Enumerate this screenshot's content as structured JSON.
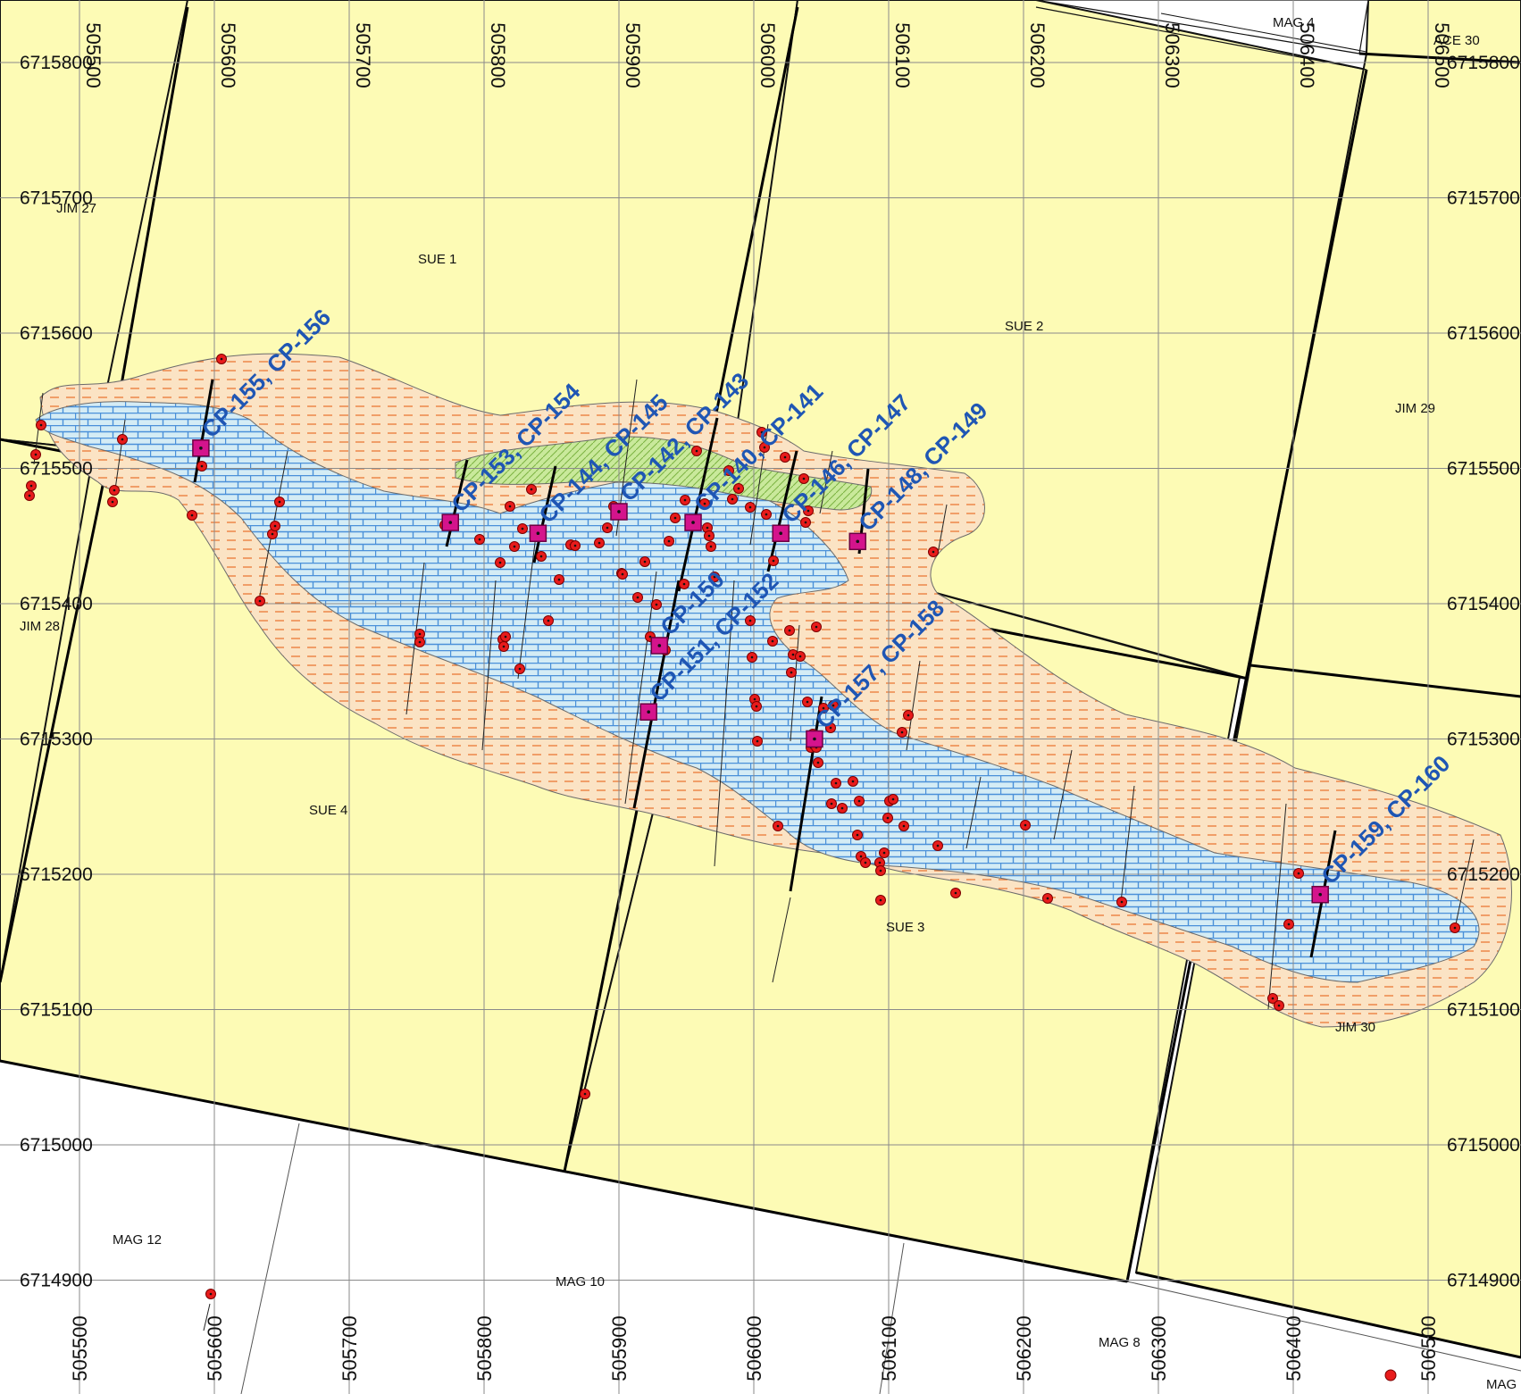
{
  "map": {
    "easting_ticks": [
      "505500",
      "505600",
      "505700",
      "505800",
      "505900",
      "506000",
      "506100",
      "506200",
      "506300",
      "506400",
      "506500"
    ],
    "northing_ticks": [
      "6715800",
      "6715700",
      "6715600",
      "6715500",
      "6715400",
      "6715300",
      "6715200",
      "6715100",
      "6715000",
      "6714900"
    ],
    "claims": [
      "JIM 27",
      "SUE 1",
      "SUE 2",
      "JIM 29",
      "JIM 28",
      "SUE 4",
      "SUE 3",
      "JIM 30",
      "MAG 12",
      "MAG 10",
      "MAG 8",
      "MAG 4",
      "ACE 30",
      "MAG"
    ],
    "drillholes": [
      {
        "label": "CP-155, CP-156",
        "e": 505590,
        "n": 6715515
      },
      {
        "label": "CP-153, CP-154",
        "e": 505775,
        "n": 6715460
      },
      {
        "label": "CP-144, CP-145",
        "e": 505840,
        "n": 6715452
      },
      {
        "label": "CP-142, CP-143",
        "e": 505900,
        "n": 6715468
      },
      {
        "label": "CP-140, CP-141",
        "e": 505955,
        "n": 6715460
      },
      {
        "label": "CP-146, CP-147",
        "e": 506020,
        "n": 6715452
      },
      {
        "label": "CP-148, CP-149",
        "e": 506077,
        "n": 6715446
      },
      {
        "label": "CP-150",
        "e": 505930,
        "n": 6715369
      },
      {
        "label": "CP-151, CP-152",
        "e": 505922,
        "n": 6715320
      },
      {
        "label": "CP-157, CP-158",
        "e": 506045,
        "n": 6715300
      },
      {
        "label": "CP-159, CP-160",
        "e": 506420,
        "n": 6715185
      }
    ],
    "colors": {
      "claim_fill": "#fdfbb5",
      "outer_zone_fill": "#fbe3c4",
      "outer_zone_dash": "#e8702a",
      "inner_zone_fill": "#d4ecf5",
      "inner_zone_brick": "#4a90d9",
      "green_zone": "#c9e99b",
      "hole_dot": "#e81b1b",
      "collar": "#d4148c",
      "hole_label": "#1f56b4"
    }
  }
}
